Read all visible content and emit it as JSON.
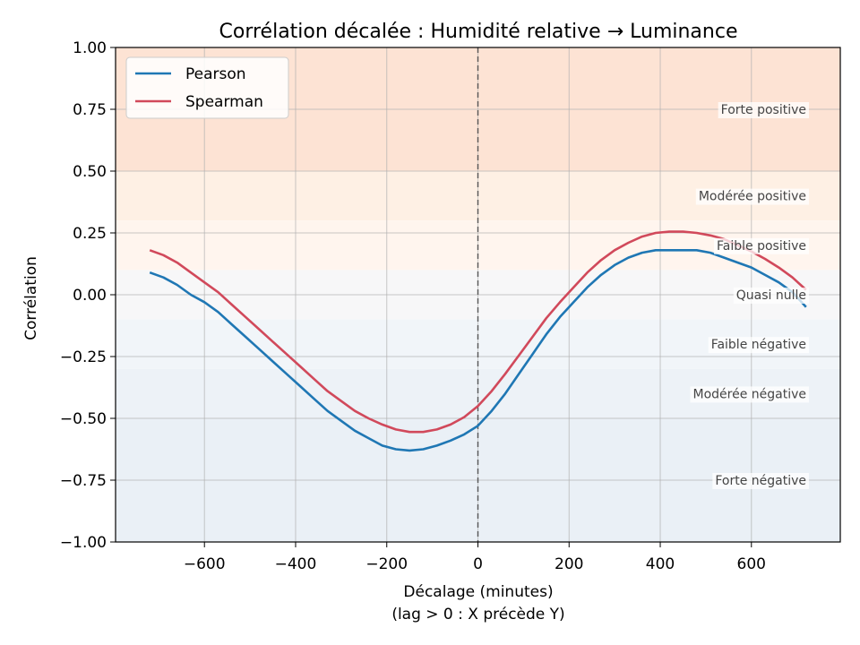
{
  "chart_data": {
    "type": "line",
    "title": "Corrélation décalée : Humidité relative → Luminance",
    "xlabel": "Décalage (minutes)",
    "xlabel_sub": "(lag > 0 : X précède Y)",
    "ylabel": "Corrélation",
    "xlim": [
      -795,
      795
    ],
    "ylim": [
      -1.0,
      1.0
    ],
    "xticks": [
      -600,
      -400,
      -200,
      0,
      200,
      400,
      600
    ],
    "xtick_labels": [
      "−600",
      "−400",
      "−200",
      "0",
      "200",
      "400",
      "600"
    ],
    "yticks": [
      -1.0,
      -0.75,
      -0.5,
      -0.25,
      0.0,
      0.25,
      0.5,
      0.75,
      1.0
    ],
    "ytick_labels": [
      "−1.00",
      "−0.75",
      "−0.50",
      "−0.25",
      "0.00",
      "0.25",
      "0.50",
      "0.75",
      "1.00"
    ],
    "grid": true,
    "legend_position": "top-left",
    "zero_lag_line": 0,
    "bands": [
      {
        "label": "Forte positive",
        "from": 0.5,
        "to": 1.0,
        "label_y": 0.75,
        "color": "#fde3d4"
      },
      {
        "label": "Modérée positive",
        "from": 0.3,
        "to": 0.5,
        "label_y": 0.4,
        "color": "#fef0e4"
      },
      {
        "label": "Faible positive",
        "from": 0.1,
        "to": 0.3,
        "label_y": 0.2,
        "color": "#fff5ee"
      },
      {
        "label": "Quasi nulle",
        "from": -0.1,
        "to": 0.1,
        "label_y": 0.0,
        "color": "#f7f7f8"
      },
      {
        "label": "Faible négative",
        "from": -0.3,
        "to": -0.1,
        "label_y": -0.2,
        "color": "#f1f5f9"
      },
      {
        "label": "Modérée négative",
        "from": -0.5,
        "to": -0.3,
        "label_y": -0.4,
        "color": "#edf2f7"
      },
      {
        "label": "Forte négative",
        "from": -1.0,
        "to": -0.5,
        "label_y": -0.75,
        "color": "#eaf0f6"
      }
    ],
    "series": [
      {
        "name": "Pearson",
        "color": "#1f77b4",
        "x": [
          -720,
          -690,
          -660,
          -630,
          -600,
          -570,
          -540,
          -510,
          -480,
          -450,
          -420,
          -390,
          -360,
          -330,
          -300,
          -270,
          -240,
          -210,
          -180,
          -150,
          -120,
          -90,
          -60,
          -30,
          0,
          30,
          60,
          90,
          120,
          150,
          180,
          210,
          240,
          270,
          300,
          330,
          360,
          390,
          420,
          450,
          480,
          510,
          540,
          570,
          600,
          630,
          660,
          690,
          720
        ],
        "values": [
          0.09,
          0.07,
          0.04,
          0.0,
          -0.03,
          -0.07,
          -0.12,
          -0.17,
          -0.22,
          -0.27,
          -0.32,
          -0.37,
          -0.42,
          -0.47,
          -0.51,
          -0.55,
          -0.58,
          -0.61,
          -0.625,
          -0.63,
          -0.625,
          -0.61,
          -0.59,
          -0.565,
          -0.53,
          -0.47,
          -0.4,
          -0.32,
          -0.24,
          -0.16,
          -0.09,
          -0.03,
          0.03,
          0.08,
          0.12,
          0.15,
          0.17,
          0.18,
          0.18,
          0.18,
          0.18,
          0.17,
          0.15,
          0.13,
          0.11,
          0.08,
          0.05,
          0.01,
          -0.05
        ]
      },
      {
        "name": "Spearman",
        "color": "#d1495b",
        "x": [
          -720,
          -690,
          -660,
          -630,
          -600,
          -570,
          -540,
          -510,
          -480,
          -450,
          -420,
          -390,
          -360,
          -330,
          -300,
          -270,
          -240,
          -210,
          -180,
          -150,
          -120,
          -90,
          -60,
          -30,
          0,
          30,
          60,
          90,
          120,
          150,
          180,
          210,
          240,
          270,
          300,
          330,
          360,
          390,
          420,
          450,
          480,
          510,
          540,
          570,
          600,
          630,
          660,
          690,
          720
        ],
        "values": [
          0.18,
          0.16,
          0.13,
          0.09,
          0.05,
          0.01,
          -0.04,
          -0.09,
          -0.14,
          -0.19,
          -0.24,
          -0.29,
          -0.34,
          -0.39,
          -0.43,
          -0.47,
          -0.5,
          -0.525,
          -0.545,
          -0.555,
          -0.555,
          -0.545,
          -0.525,
          -0.495,
          -0.45,
          -0.39,
          -0.32,
          -0.245,
          -0.17,
          -0.095,
          -0.03,
          0.03,
          0.09,
          0.14,
          0.18,
          0.21,
          0.235,
          0.25,
          0.255,
          0.255,
          0.25,
          0.24,
          0.225,
          0.2,
          0.175,
          0.145,
          0.11,
          0.07,
          0.02
        ]
      }
    ]
  }
}
